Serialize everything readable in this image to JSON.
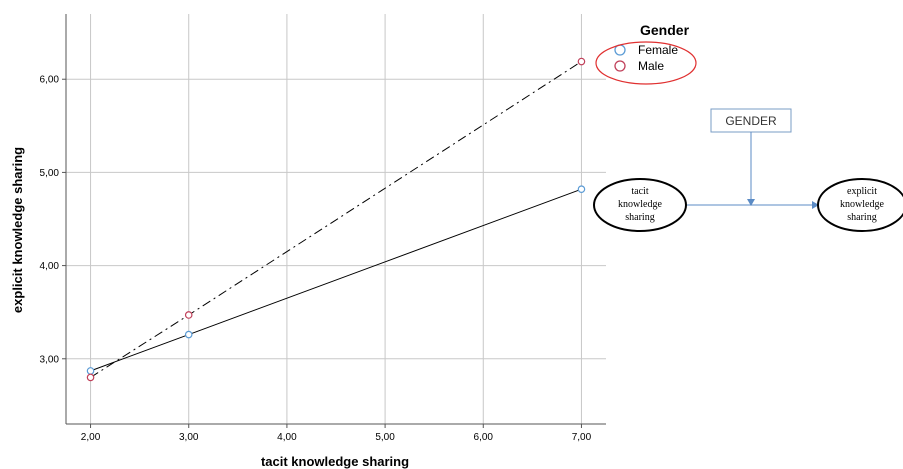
{
  "chart_data": {
    "type": "line",
    "xlabel": "tacit knowledge sharing",
    "ylabel": "explicit knowledge sharing",
    "x_ticks": [
      "2,00",
      "3,00",
      "4,00",
      "5,00",
      "6,00",
      "7,00"
    ],
    "y_ticks": [
      "3,00",
      "4,00",
      "5,00",
      "6,00"
    ],
    "xlim": [
      1.75,
      7.25
    ],
    "ylim": [
      2.3,
      6.7
    ],
    "grid": true,
    "legend_position": "top-right",
    "legend_title": "Gender",
    "series": [
      {
        "name": "Female",
        "x": [
          2,
          3,
          7
        ],
        "y": [
          2.87,
          3.26,
          4.82
        ],
        "line_style": "solid",
        "marker_color": "#5b9bd5"
      },
      {
        "name": "Male",
        "x": [
          2,
          3,
          7
        ],
        "y": [
          2.8,
          3.47,
          6.19
        ],
        "line_style": "dash-dot",
        "marker_color": "#c0405a"
      }
    ]
  },
  "diagram": {
    "moderator": "GENDER",
    "source_lines": [
      "tacit",
      "knowledge",
      "sharing"
    ],
    "target_lines": [
      "explicit",
      "knowledge",
      "sharing"
    ]
  },
  "colors": {
    "grid": "#c8c8c8",
    "axis": "#555555",
    "highlight_ellipse": "#e03030",
    "arrow": "#5b8bc5"
  }
}
